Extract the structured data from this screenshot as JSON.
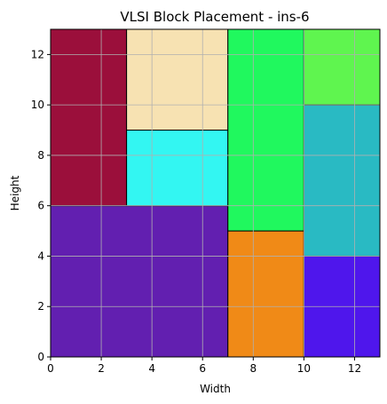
{
  "chart_data": {
    "type": "heatmap",
    "title": "VLSI Block Placement - ins-6",
    "xlabel": "Width",
    "ylabel": "Height",
    "xlim": [
      0,
      13
    ],
    "ylim": [
      0,
      13
    ],
    "xticks": [
      0,
      2,
      4,
      6,
      8,
      10,
      12
    ],
    "yticks": [
      0,
      2,
      4,
      6,
      8,
      10,
      12
    ],
    "grid": true,
    "blocks": [
      {
        "x": 0,
        "y": 0,
        "w": 7,
        "h": 6,
        "color": "#621fb0"
      },
      {
        "x": 0,
        "y": 6,
        "w": 3,
        "h": 7,
        "color": "#9b0f3b"
      },
      {
        "x": 3,
        "y": 6,
        "w": 4,
        "h": 3,
        "color": "#33f6f2"
      },
      {
        "x": 3,
        "y": 9,
        "w": 4,
        "h": 4,
        "color": "#f7e2b2"
      },
      {
        "x": 7,
        "y": 0,
        "w": 3,
        "h": 5,
        "color": "#f08a17"
      },
      {
        "x": 7,
        "y": 5,
        "w": 3,
        "h": 8,
        "color": "#20f85e"
      },
      {
        "x": 10,
        "y": 0,
        "w": 3,
        "h": 4,
        "color": "#4f16ec"
      },
      {
        "x": 10,
        "y": 4,
        "w": 3,
        "h": 6,
        "color": "#29bac3"
      },
      {
        "x": 10,
        "y": 10,
        "w": 3,
        "h": 3,
        "color": "#5ff54f"
      }
    ]
  }
}
